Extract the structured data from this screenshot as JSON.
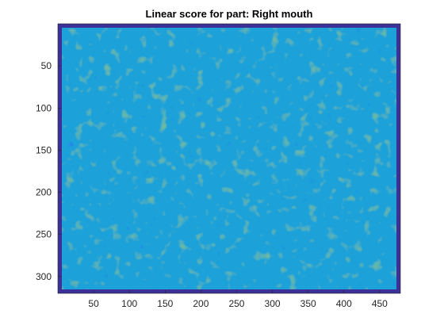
{
  "chart_data": {
    "type": "heatmap",
    "title": "Linear score for part: Right mouth",
    "xlabel": "",
    "ylabel": "",
    "xlim": [
      0,
      479
    ],
    "ylim": [
      0,
      320
    ],
    "y_direction": "reverse",
    "xticks": [
      50,
      100,
      150,
      200,
      250,
      300,
      350,
      400,
      450
    ],
    "yticks": [
      50,
      100,
      150,
      200,
      250,
      300
    ],
    "colormap": [
      "#3e26a8",
      "#2f5df9",
      "#1a9ee4",
      "#22bbba",
      "#84c769",
      "#eab432",
      "#f9fb0e"
    ],
    "border_color": "#3b3199",
    "background_value_color": "#1ea2d8",
    "highlight_color": "#eac331",
    "colorbar": false,
    "grid": false
  }
}
